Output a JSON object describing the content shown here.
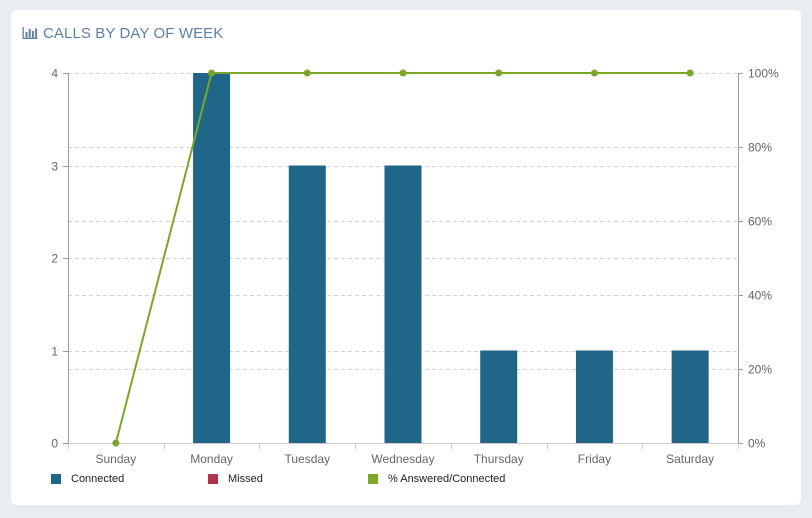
{
  "card": {
    "title": "CALLS BY DAY OF WEEK",
    "icon": "bar-chart-icon",
    "title_color": "#5f7fa8"
  },
  "legend": [
    {
      "label": "Connected",
      "color": "#1f6689"
    },
    {
      "label": "Missed",
      "color": "#b1324c"
    },
    {
      "label": "% Answered/Connected",
      "color": "#7aa727"
    }
  ],
  "chart_data": {
    "type": "bar",
    "categories": [
      "Sunday",
      "Monday",
      "Tuesday",
      "Wednesday",
      "Thursday",
      "Friday",
      "Saturday"
    ],
    "series": [
      {
        "name": "Connected",
        "type": "bar",
        "axis": "left",
        "color": "#1f6689",
        "values": [
          0,
          4,
          3,
          3,
          1,
          1,
          1
        ]
      },
      {
        "name": "Missed",
        "type": "bar",
        "axis": "left",
        "color": "#b1324c",
        "values": [
          0,
          0,
          0,
          0,
          0,
          0,
          0
        ]
      },
      {
        "name": "% Answered/Connected",
        "type": "line",
        "axis": "right",
        "color": "#7aa727",
        "values": [
          0,
          100,
          100,
          100,
          100,
          100,
          100
        ]
      }
    ],
    "y_left": {
      "min": 0,
      "max": 4,
      "ticks": [
        0,
        1,
        2,
        3,
        4
      ],
      "tick_labels": [
        "0",
        "1",
        "2",
        "3",
        "4"
      ]
    },
    "y_right": {
      "min": 0,
      "max": 100,
      "ticks": [
        0,
        20,
        40,
        60,
        80,
        100
      ],
      "tick_labels": [
        "0%",
        "20%",
        "40%",
        "60%",
        "80%",
        "100%"
      ]
    },
    "grid": true,
    "grid_style": "dashed",
    "legend_position": "bottom-left"
  }
}
